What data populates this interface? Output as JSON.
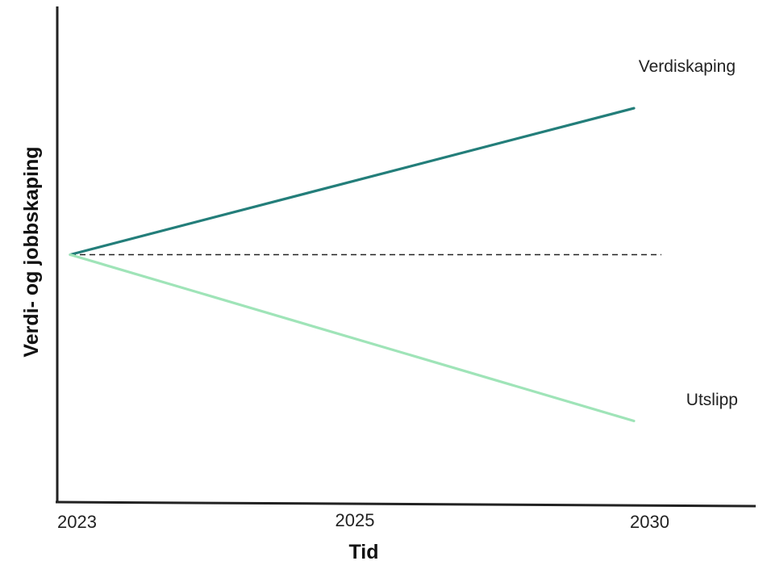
{
  "chart_data": {
    "type": "line",
    "title": "",
    "xlabel": "Tid",
    "ylabel": "Verdi- og jobbskaping",
    "categories": [
      "2023",
      "2025",
      "2030"
    ],
    "ylim": [
      -1,
      1
    ],
    "grid": false,
    "legend": "inline-right",
    "series": [
      {
        "name": "Verdiskaping",
        "color": "#237e7a",
        "points": [
          {
            "x": "2023",
            "y": 0
          },
          {
            "x": "2030",
            "y": 0.59
          }
        ]
      },
      {
        "name": "Utslipp",
        "color": "#9fe4b8",
        "points": [
          {
            "x": "2023",
            "y": 0
          },
          {
            "x": "2030",
            "y": -0.67
          }
        ]
      }
    ],
    "reference_line": {
      "y": 0,
      "style": "dashed",
      "color": "#222222"
    }
  }
}
